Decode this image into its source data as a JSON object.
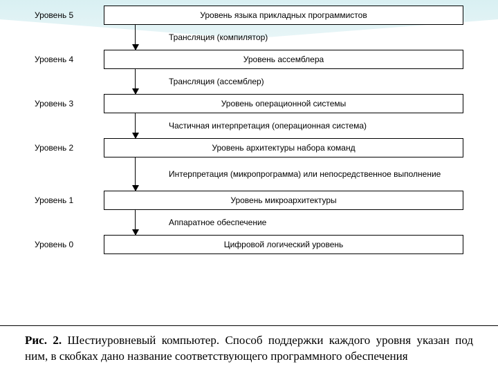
{
  "diagram": {
    "type": "flowchart",
    "background_color": "#ffffff",
    "border_color": "#000000",
    "border_width": 1.5,
    "font_size_box": 12,
    "font_size_label": 12,
    "levels": [
      {
        "label": "Уровень 5",
        "box": "Уровень языка прикладных программистов"
      },
      {
        "label": "Уровень 4",
        "box": "Уровень ассемблера"
      },
      {
        "label": "Уровень 3",
        "box": "Уровень операционной системы"
      },
      {
        "label": "Уровень 2",
        "box": "Уровень архитектуры набора команд"
      },
      {
        "label": "Уровень 1",
        "box": "Уровень микроархитектуры"
      },
      {
        "label": "Уровень 0",
        "box": "Цифровой логический уровень"
      }
    ],
    "transitions": [
      {
        "text": "Трансляция (компилятор)",
        "tall": false
      },
      {
        "text": "Трансляция (ассемблер)",
        "tall": false
      },
      {
        "text": "Частичная интерпретация (операционная система)",
        "tall": false
      },
      {
        "text": "Интерпретация (микропрограмма) или непосредственное выполнение",
        "tall": true
      },
      {
        "text": "Аппаратное обеспечение",
        "tall": false
      }
    ]
  },
  "caption": {
    "bold": "Рис. 2.",
    "text": " Шестиуровневый компьютер. Способ поддержки каждого уровня указан под ним, в скобках дано название соответствующего программного обеспечения",
    "font_size": 17,
    "font_family": "Georgia, serif"
  }
}
